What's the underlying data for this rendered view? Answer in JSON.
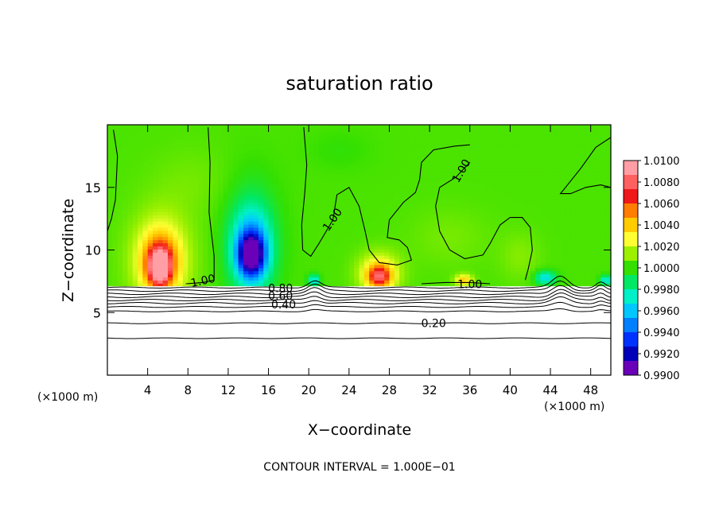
{
  "chart_data": {
    "type": "heatmap",
    "title": "saturation ratio",
    "xlabel": "X−coordinate",
    "ylabel": "Z−coordinate",
    "x_unit_left": "(×1000 m)",
    "x_unit_right": "(×1000 m)",
    "footer": "CONTOUR INTERVAL = 1.000E−01",
    "xlim": [
      0,
      50
    ],
    "ylim": [
      0,
      20
    ],
    "x_ticks": [
      4,
      8,
      12,
      16,
      20,
      24,
      28,
      32,
      36,
      40,
      44,
      48
    ],
    "y_ticks": [
      5,
      10,
      15
    ],
    "colorbar": {
      "levels": [
        "1.0100",
        "1.0080",
        "1.0060",
        "1.0040",
        "1.0020",
        "1.0000",
        "0.9980",
        "0.9960",
        "0.9940",
        "0.9920",
        "0.9900"
      ],
      "colors": [
        "#ff9ea5",
        "#ff6060",
        "#f01818",
        "#ff7d00",
        "#ffcc00",
        "#ffff33",
        "#9cf000",
        "#35e000",
        "#00e864",
        "#00f0c8",
        "#00c8ff",
        "#0080ff",
        "#0032ff",
        "#0000b8",
        "#6a00b8"
      ]
    },
    "contour_labels": [
      {
        "text": "1.00",
        "x": 9.5,
        "z": 7.5,
        "rot": -12
      },
      {
        "text": "1.00",
        "x": 22.4,
        "z": 12.4,
        "rot": -55
      },
      {
        "text": "1.00",
        "x": 35.2,
        "z": 16.3,
        "rot": -60
      },
      {
        "text": "1.00",
        "x": 36.0,
        "z": 7.2,
        "rot": 0
      },
      {
        "text": "0.80",
        "x": 17.2,
        "z": 6.9,
        "rot": 0
      },
      {
        "text": "0.60",
        "x": 17.2,
        "z": 6.3,
        "rot": 0
      },
      {
        "text": "0.40",
        "x": 17.5,
        "z": 5.6,
        "rot": 0
      },
      {
        "text": "0.20",
        "x": 32.4,
        "z": 4.1,
        "rot": 0
      }
    ],
    "sat_contour_1_00": [
      [
        [
          0.6,
          19.6
        ],
        [
          1.0,
          17.5
        ],
        [
          0.8,
          14.0
        ],
        [
          0.4,
          12.5
        ],
        [
          0.0,
          11.5
        ]
      ],
      [
        [
          10.0,
          19.8
        ],
        [
          10.2,
          17.0
        ],
        [
          10.1,
          13.0
        ],
        [
          10.6,
          9.5
        ],
        [
          10.6,
          7.6
        ],
        [
          9.5,
          7.4
        ],
        [
          7.8,
          7.3
        ]
      ],
      [
        [
          19.5,
          19.8
        ],
        [
          19.8,
          16.8
        ],
        [
          19.6,
          14.5
        ],
        [
          19.3,
          12.0
        ],
        [
          19.4,
          10.0
        ],
        [
          20.2,
          9.5
        ],
        [
          21.0,
          10.5
        ],
        [
          22.4,
          12.4
        ],
        [
          22.8,
          14.4
        ],
        [
          24.0,
          15.0
        ],
        [
          25.0,
          13.5
        ],
        [
          25.6,
          11.5
        ],
        [
          26.0,
          10.0
        ],
        [
          27.0,
          9.0
        ],
        [
          28.8,
          8.8
        ],
        [
          30.2,
          9.2
        ],
        [
          29.8,
          10.2
        ],
        [
          29.0,
          10.8
        ],
        [
          27.8,
          11.0
        ],
        [
          28.0,
          12.4
        ],
        [
          29.4,
          13.8
        ],
        [
          30.6,
          14.6
        ],
        [
          31.0,
          15.6
        ],
        [
          31.2,
          17.0
        ],
        [
          32.4,
          18.0
        ],
        [
          34.5,
          18.3
        ],
        [
          36.0,
          18.4
        ]
      ],
      [
        [
          36.0,
          17.0
        ],
        [
          34.6,
          15.8
        ],
        [
          33.0,
          15.0
        ],
        [
          32.6,
          13.5
        ],
        [
          33.0,
          11.5
        ],
        [
          34.0,
          10.0
        ],
        [
          35.5,
          9.3
        ],
        [
          37.3,
          9.6
        ],
        [
          38.0,
          10.5
        ],
        [
          39.0,
          12.0
        ],
        [
          40.0,
          12.6
        ],
        [
          41.2,
          12.6
        ],
        [
          42.0,
          11.8
        ],
        [
          42.2,
          10.0
        ],
        [
          41.8,
          8.5
        ],
        [
          41.5,
          7.6
        ]
      ],
      [
        [
          50.0,
          19.0
        ],
        [
          48.5,
          18.2
        ],
        [
          47.0,
          16.5
        ],
        [
          45.5,
          15.0
        ],
        [
          45.0,
          14.5
        ],
        [
          46.0,
          14.5
        ],
        [
          47.5,
          15.0
        ],
        [
          49.0,
          15.2
        ],
        [
          50.0,
          15.0
        ]
      ],
      [
        [
          31.2,
          7.3
        ],
        [
          33.5,
          7.4
        ],
        [
          36.0,
          7.4
        ],
        [
          38.0,
          7.3
        ]
      ]
    ],
    "heat_blobs": [
      {
        "x": 5.3,
        "z": 9.2,
        "rx": 4.4,
        "rz": 5.4,
        "v": 0.0015
      },
      {
        "x": 5.3,
        "z": 9.3,
        "rx": 3.0,
        "rz": 3.8,
        "v": 0.0025
      },
      {
        "x": 5.2,
        "z": 9.0,
        "rx": 2.0,
        "rz": 2.6,
        "v": 0.0045
      },
      {
        "x": 5.2,
        "z": 8.6,
        "rx": 1.2,
        "rz": 1.6,
        "v": 0.007
      },
      {
        "x": 14.3,
        "z": 10.6,
        "rx": 3.3,
        "rz": 6.0,
        "v": -0.0022
      },
      {
        "x": 14.3,
        "z": 10.2,
        "rx": 2.3,
        "rz": 3.6,
        "v": -0.0045
      },
      {
        "x": 14.3,
        "z": 9.6,
        "rx": 1.6,
        "rz": 2.0,
        "v": -0.0075
      },
      {
        "x": 27.0,
        "z": 8.2,
        "rx": 2.6,
        "rz": 2.0,
        "v": 0.0035
      },
      {
        "x": 27.0,
        "z": 7.9,
        "rx": 1.4,
        "rz": 1.1,
        "v": 0.0055
      },
      {
        "x": 35.4,
        "z": 7.6,
        "rx": 1.1,
        "rz": 0.6,
        "v": 0.004
      },
      {
        "x": 20.5,
        "z": 7.6,
        "rx": 0.7,
        "rz": 0.6,
        "v": -0.004
      },
      {
        "x": 43.5,
        "z": 7.8,
        "rx": 1.3,
        "rz": 0.7,
        "v": -0.004
      },
      {
        "x": 49.5,
        "z": 7.6,
        "rx": 0.7,
        "rz": 0.5,
        "v": -0.004
      },
      {
        "x": 8.5,
        "z": 15.5,
        "rx": 5.0,
        "rz": 3.5,
        "v": 0.0005
      },
      {
        "x": 34.0,
        "z": 11.0,
        "rx": 5.0,
        "rz": 3.0,
        "v": 0.0006
      },
      {
        "x": 41.0,
        "z": 9.5,
        "rx": 2.5,
        "rz": 2.5,
        "v": 0.0008
      },
      {
        "x": 23.0,
        "z": 18.0,
        "rx": 4.0,
        "rz": 2.0,
        "v": -0.0004
      }
    ],
    "cloud_base_z": 7.1,
    "water_contours": [
      {
        "z": 7.0,
        "amp": 0.15
      },
      {
        "z": 6.75,
        "amp": 0.2
      },
      {
        "z": 6.5,
        "amp": 0.2
      },
      {
        "z": 6.25,
        "amp": 0.2
      },
      {
        "z": 6.0,
        "amp": 0.2
      },
      {
        "z": 5.75,
        "amp": 0.2
      },
      {
        "z": 5.45,
        "amp": 0.15
      },
      {
        "z": 5.1,
        "amp": 0.12
      },
      {
        "z": 4.15,
        "amp": 0.12
      },
      {
        "z": 2.95,
        "amp": 0.1
      }
    ]
  }
}
